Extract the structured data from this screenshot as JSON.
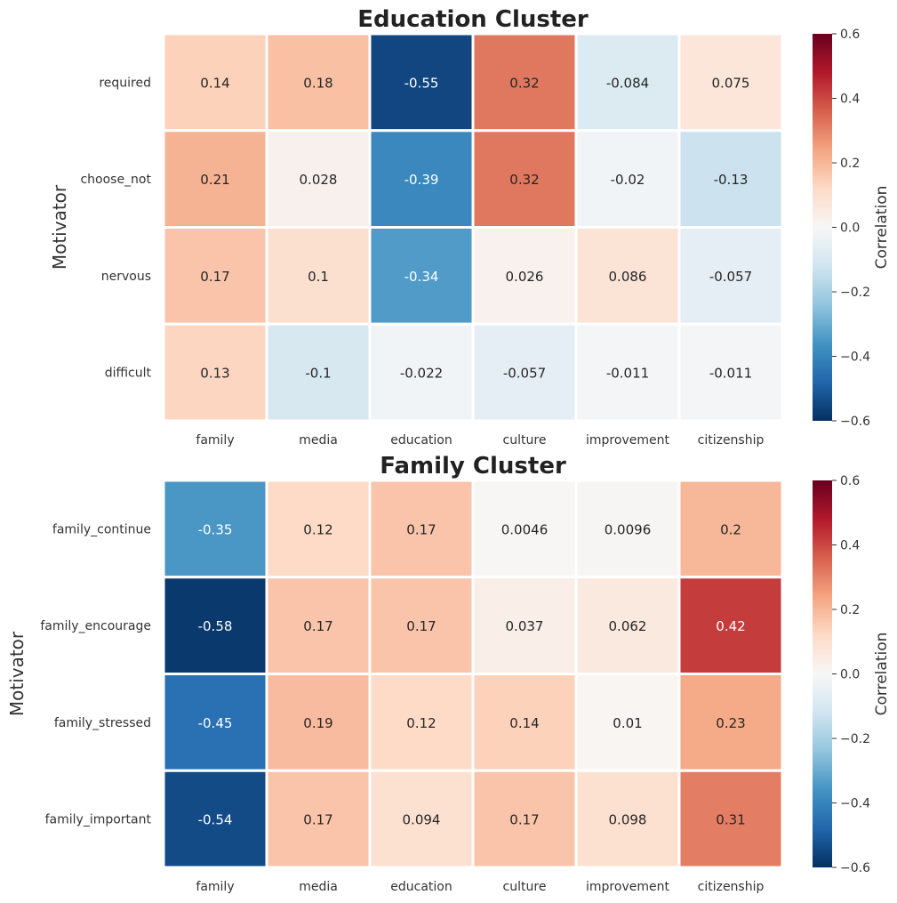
{
  "chart_data": [
    {
      "type": "heatmap",
      "title": "Education Cluster",
      "ylabel": "Motivator",
      "xlabel": "",
      "columns": [
        "family",
        "media",
        "education",
        "culture",
        "improvement",
        "citizenship"
      ],
      "rows": [
        "required",
        "choose_not",
        "nervous",
        "difficult"
      ],
      "values": [
        [
          0.14,
          0.18,
          -0.55,
          0.32,
          -0.084,
          0.075
        ],
        [
          0.21,
          0.028,
          -0.39,
          0.32,
          -0.02,
          -0.13
        ],
        [
          0.17,
          0.1,
          -0.34,
          0.026,
          0.086,
          -0.057
        ],
        [
          0.13,
          -0.1,
          -0.022,
          -0.057,
          -0.011,
          -0.011
        ]
      ],
      "labels": [
        [
          "0.14",
          "0.18",
          "-0.55",
          "0.32",
          "-0.084",
          "0.075"
        ],
        [
          "0.21",
          "0.028",
          "-0.39",
          "0.32",
          "-0.02",
          "-0.13"
        ],
        [
          "0.17",
          "0.1",
          "-0.34",
          "0.026",
          "0.086",
          "-0.057"
        ],
        [
          "0.13",
          "-0.1",
          "-0.022",
          "-0.057",
          "-0.011",
          "-0.011"
        ]
      ],
      "colorbar": {
        "label": "Correlation",
        "vmin": -0.6,
        "vmax": 0.6,
        "ticks": [
          "0.6",
          "0.4",
          "0.2",
          "0.0",
          "−0.2",
          "−0.4",
          "−0.6"
        ],
        "colormap": "RdBu_r"
      }
    },
    {
      "type": "heatmap",
      "title": "Family Cluster",
      "ylabel": "Motivator",
      "xlabel": "",
      "columns": [
        "family",
        "media",
        "education",
        "culture",
        "improvement",
        "citizenship"
      ],
      "rows": [
        "family_continue",
        "family_encourage",
        "family_stressed",
        "family_important"
      ],
      "values": [
        [
          -0.35,
          0.12,
          0.17,
          0.0046,
          0.0096,
          0.2
        ],
        [
          -0.58,
          0.17,
          0.17,
          0.037,
          0.062,
          0.42
        ],
        [
          -0.45,
          0.19,
          0.12,
          0.14,
          0.01,
          0.23
        ],
        [
          -0.54,
          0.17,
          0.094,
          0.17,
          0.098,
          0.31
        ]
      ],
      "labels": [
        [
          "-0.35",
          "0.12",
          "0.17",
          "0.0046",
          "0.0096",
          "0.2"
        ],
        [
          "-0.58",
          "0.17",
          "0.17",
          "0.037",
          "0.062",
          "0.42"
        ],
        [
          "-0.45",
          "0.19",
          "0.12",
          "0.14",
          "0.01",
          "0.23"
        ],
        [
          "-0.54",
          "0.17",
          "0.094",
          "0.17",
          "0.098",
          "0.31"
        ]
      ],
      "colorbar": {
        "label": "Correlation",
        "vmin": -0.6,
        "vmax": 0.6,
        "ticks": [
          "0.6",
          "0.4",
          "0.2",
          "0.0",
          "−0.2",
          "−0.4",
          "−0.6"
        ],
        "colormap": "RdBu_r"
      }
    }
  ]
}
